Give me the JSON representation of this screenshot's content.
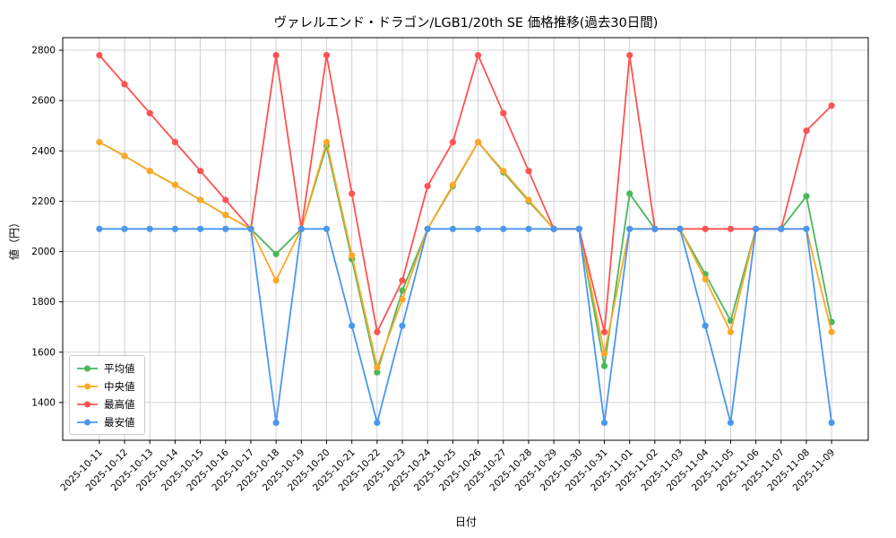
{
  "chart_data": {
    "type": "line",
    "title": "ヴァレルエンド・ドラゴン/LGB1/20th SE 価格推移(過去30日間)",
    "xlabel": "日付",
    "ylabel": "値（円）",
    "x": [
      "2025-10-11",
      "2025-10-12",
      "2025-10-13",
      "2025-10-14",
      "2025-10-15",
      "2025-10-16",
      "2025-10-17",
      "2025-10-18",
      "2025-10-19",
      "2025-10-20",
      "2025-10-21",
      "2025-10-22",
      "2025-10-23",
      "2025-10-24",
      "2025-10-25",
      "2025-10-26",
      "2025-10-27",
      "2025-10-28",
      "2025-10-29",
      "2025-10-30",
      "2025-10-31",
      "2025-11-01",
      "2025-11-02",
      "2025-11-03",
      "2025-11-04",
      "2025-11-05",
      "2025-11-06",
      "2025-11-07",
      "2025-11-08",
      "2025-11-09"
    ],
    "series": [
      {
        "name": "平均値",
        "color": "#4bb75c",
        "values": [
          2435,
          2380,
          2320,
          2265,
          2205,
          2145,
          2090,
          1990,
          2090,
          2420,
          1970,
          1520,
          1845,
          2090,
          2260,
          2435,
          2315,
          2200,
          2090,
          2090,
          1545,
          2230,
          2090,
          2090,
          1910,
          1725,
          2090,
          2090,
          2220,
          1720
        ]
      },
      {
        "name": "中央値",
        "color": "#ffa726",
        "values": [
          2435,
          2380,
          2320,
          2265,
          2205,
          2145,
          2090,
          1885,
          2090,
          2435,
          1985,
          1540,
          1810,
          2090,
          2265,
          2435,
          2320,
          2205,
          2090,
          2090,
          1595,
          2090,
          2090,
          2090,
          1890,
          1680,
          2090,
          2090,
          2090,
          1680
        ]
      },
      {
        "name": "最高値",
        "color": "#ff5252",
        "values": [
          2780,
          2665,
          2550,
          2435,
          2320,
          2205,
          2090,
          2780,
          2090,
          2780,
          2230,
          1680,
          1885,
          2260,
          2435,
          2780,
          2550,
          2320,
          2090,
          2090,
          1680,
          2780,
          2090,
          2090,
          2090,
          2090,
          2090,
          2090,
          2480,
          2580
        ]
      },
      {
        "name": "最安値",
        "color": "#4a97ef",
        "values": [
          2090,
          2090,
          2090,
          2090,
          2090,
          2090,
          2090,
          1320,
          2090,
          2090,
          1705,
          1320,
          1705,
          2090,
          2090,
          2090,
          2090,
          2090,
          2090,
          2090,
          1320,
          2090,
          2090,
          2090,
          1705,
          1320,
          2090,
          2090,
          2090,
          1320
        ]
      }
    ],
    "ylim": [
      1250,
      2850
    ],
    "yticks": [
      1400,
      1600,
      1800,
      2000,
      2200,
      2400,
      2600,
      2800
    ],
    "grid": true,
    "legend_position": "lower left"
  }
}
